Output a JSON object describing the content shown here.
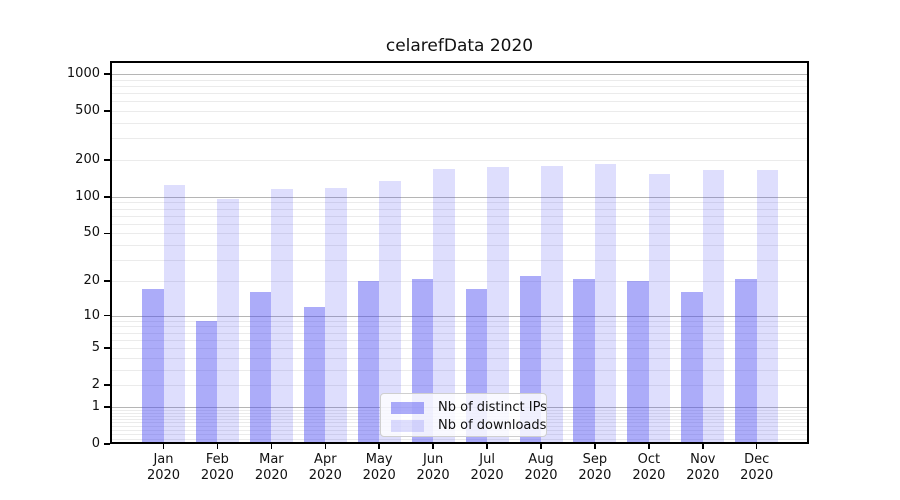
{
  "chart_data": {
    "type": "bar",
    "title": "celarefData 2020",
    "categories": [
      "Jan",
      "Feb",
      "Mar",
      "Apr",
      "May",
      "Jun",
      "Jul",
      "Aug",
      "Sep",
      "Oct",
      "Nov",
      "Dec"
    ],
    "category_year_line": "2020",
    "series": [
      {
        "name": "Nb of distinct IPs",
        "color": "rgba(70,70,242,0.45)",
        "values": [
          17,
          9,
          16,
          12,
          20,
          21,
          17,
          22,
          21,
          20,
          16,
          21
        ]
      },
      {
        "name": "Nb of downloads",
        "color": "rgba(70,70,242,0.18)",
        "values": [
          125,
          96,
          115,
          118,
          134,
          170,
          176,
          179,
          184,
          153,
          167,
          167
        ]
      }
    ],
    "y_axis": {
      "scale": "log1p",
      "tick_values": [
        0,
        1,
        2,
        5,
        10,
        20,
        50,
        100,
        200,
        500,
        1000
      ],
      "ylim": [
        0,
        1000
      ]
    },
    "grid": "horizontal, minor log gridlines",
    "legend_position": "bottom-center"
  }
}
